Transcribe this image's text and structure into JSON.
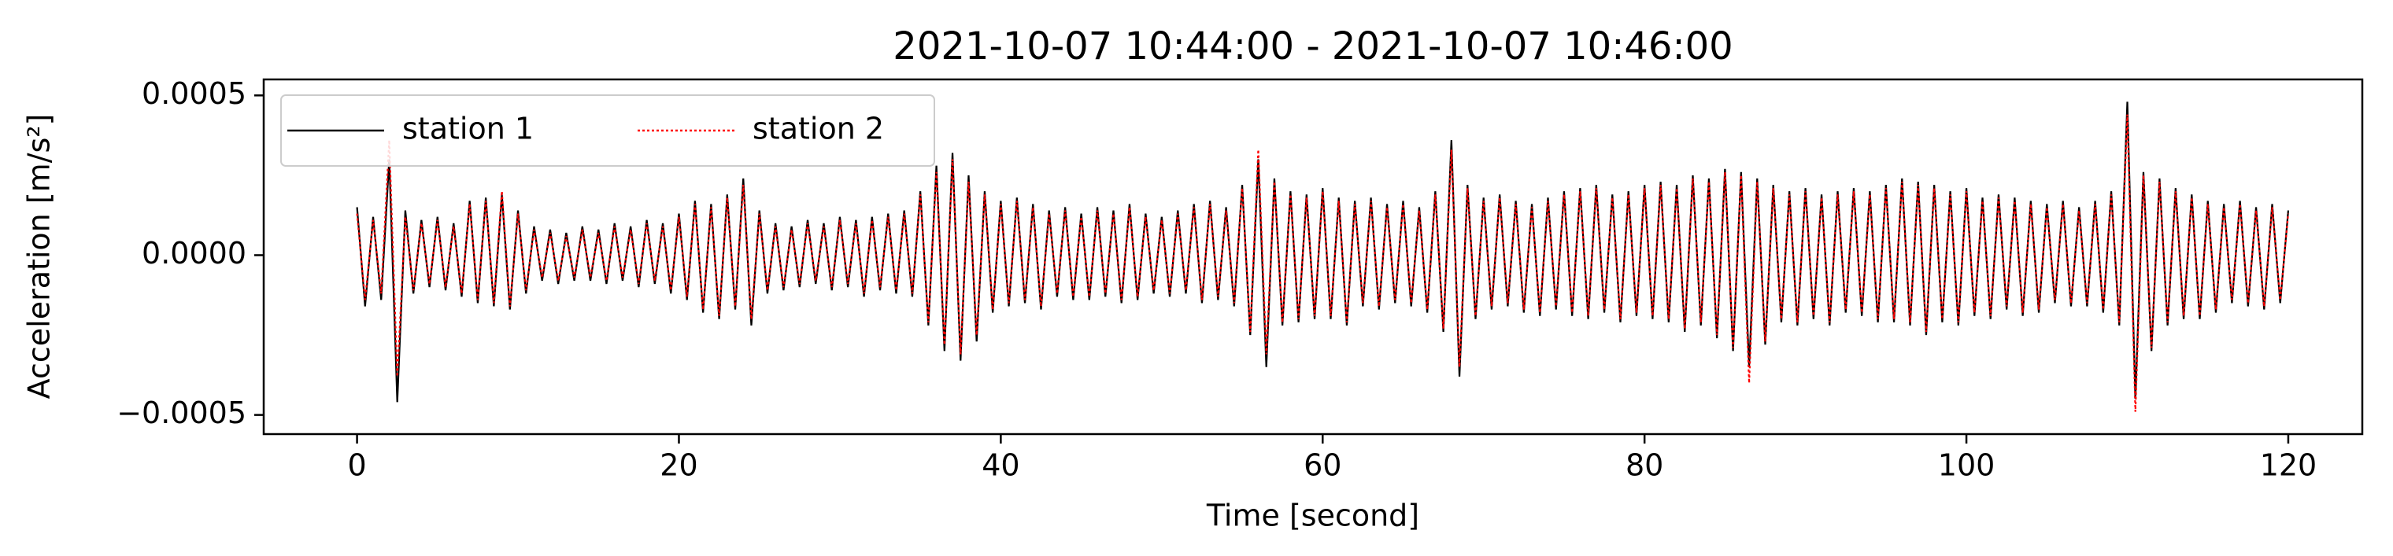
{
  "chart_data": {
    "type": "line",
    "title": "2021-10-07 10:44:00 - 2021-10-07 10:46:00",
    "xlabel": "Time [second]",
    "ylabel": "Acceleration [m/s²]",
    "xlim": [
      -5.8,
      124.6
    ],
    "ylim": [
      -0.00056,
      0.00055
    ],
    "xticks": [
      0,
      20,
      40,
      60,
      80,
      100,
      120
    ],
    "yticks": [
      {
        "value": -0.0005,
        "label": "−0.0005"
      },
      {
        "value": 0,
        "label": "0.0000"
      },
      0.0005
    ],
    "legend": "upper left",
    "x": [
      0,
      0.5,
      1,
      1.5,
      2,
      2.5,
      3,
      3.5,
      4,
      4.5,
      5,
      5.5,
      6,
      6.5,
      7,
      7.5,
      8,
      8.5,
      9,
      9.5,
      10,
      10.5,
      11,
      11.5,
      12,
      12.5,
      13,
      13.5,
      14,
      14.5,
      15,
      15.5,
      16,
      16.5,
      17,
      17.5,
      18,
      18.5,
      19,
      19.5,
      20,
      20.5,
      21,
      21.5,
      22,
      22.5,
      23,
      23.5,
      24,
      24.5,
      25,
      25.5,
      26,
      26.5,
      27,
      27.5,
      28,
      28.5,
      29,
      29.5,
      30,
      30.5,
      31,
      31.5,
      32,
      32.5,
      33,
      33.5,
      34,
      34.5,
      35,
      35.5,
      36,
      36.5,
      37,
      37.5,
      38,
      38.5,
      39,
      39.5,
      40,
      40.5,
      41,
      41.5,
      42,
      42.5,
      43,
      43.5,
      44,
      44.5,
      45,
      45.5,
      46,
      46.5,
      47,
      47.5,
      48,
      48.5,
      49,
      49.5,
      50,
      50.5,
      51,
      51.5,
      52,
      52.5,
      53,
      53.5,
      54,
      54.5,
      55,
      55.5,
      56,
      56.5,
      57,
      57.5,
      58,
      58.5,
      59,
      59.5,
      60,
      60.5,
      61,
      61.5,
      62,
      62.5,
      63,
      63.5,
      64,
      64.5,
      65,
      65.5,
      66,
      66.5,
      67,
      67.5,
      68,
      68.5,
      69,
      69.5,
      70,
      70.5,
      71,
      71.5,
      72,
      72.5,
      73,
      73.5,
      74,
      74.5,
      75,
      75.5,
      76,
      76.5,
      77,
      77.5,
      78,
      78.5,
      79,
      79.5,
      80,
      80.5,
      81,
      81.5,
      82,
      82.5,
      83,
      83.5,
      84,
      84.5,
      85,
      85.5,
      86,
      86.5,
      87,
      87.5,
      88,
      88.5,
      89,
      89.5,
      90,
      90.5,
      91,
      91.5,
      92,
      92.5,
      93,
      93.5,
      94,
      94.5,
      95,
      95.5,
      96,
      96.5,
      97,
      97.5,
      98,
      98.5,
      99,
      99.5,
      100,
      100.5,
      101,
      101.5,
      102,
      102.5,
      103,
      103.5,
      104,
      104.5,
      105,
      105.5,
      106,
      106.5,
      107,
      107.5,
      108,
      108.5,
      109,
      109.5,
      110,
      110.5,
      111,
      111.5,
      112,
      112.5,
      113,
      113.5,
      114,
      114.5,
      115,
      115.5,
      116,
      116.5,
      117,
      117.5,
      118,
      118.5,
      119,
      119.5,
      120
    ],
    "series": [
      {
        "name": "station 1",
        "color": "#000000",
        "style": "solid",
        "values": [
          0.00015,
          -0.00016,
          0.00012,
          -0.00014,
          0.0003,
          -0.00046,
          0.00014,
          -0.00012,
          0.00011,
          -0.0001,
          0.00012,
          -0.00011,
          0.0001,
          -0.00013,
          0.00017,
          -0.00015,
          0.00018,
          -0.00016,
          0.00019,
          -0.00017,
          0.00014,
          -0.00012,
          9e-05,
          -8e-05,
          8e-05,
          -9e-05,
          7e-05,
          -8e-05,
          9e-05,
          -8e-05,
          8e-05,
          -9e-05,
          0.0001,
          -8e-05,
          9e-05,
          -0.0001,
          0.00011,
          -9e-05,
          0.0001,
          -0.00012,
          0.00013,
          -0.00014,
          0.00017,
          -0.00018,
          0.00016,
          -0.0002,
          0.00019,
          -0.00017,
          0.00024,
          -0.00022,
          0.00014,
          -0.00012,
          0.0001,
          -0.00011,
          9e-05,
          -0.0001,
          0.00011,
          -9e-05,
          0.0001,
          -0.00011,
          0.00012,
          -0.0001,
          0.00011,
          -0.00013,
          0.00012,
          -0.00011,
          0.00013,
          -0.00012,
          0.00014,
          -0.00013,
          0.0002,
          -0.00022,
          0.00028,
          -0.0003,
          0.00032,
          -0.00033,
          0.00025,
          -0.00027,
          0.0002,
          -0.00018,
          0.00017,
          -0.00016,
          0.00018,
          -0.00015,
          0.00016,
          -0.00017,
          0.00014,
          -0.00013,
          0.00015,
          -0.00014,
          0.00013,
          -0.00014,
          0.00015,
          -0.00013,
          0.00014,
          -0.00015,
          0.00016,
          -0.00014,
          0.00013,
          -0.00012,
          0.00012,
          -0.00013,
          0.00014,
          -0.00012,
          0.00016,
          -0.00015,
          0.00017,
          -0.00014,
          0.00015,
          -0.00016,
          0.00022,
          -0.00025,
          0.0003,
          -0.00035,
          0.00024,
          -0.00022,
          0.0002,
          -0.00021,
          0.00019,
          -0.0002,
          0.00021,
          -0.0002,
          0.00018,
          -0.00022,
          0.00017,
          -0.00016,
          0.00018,
          -0.00017,
          0.00016,
          -0.00015,
          0.00017,
          -0.00016,
          0.00015,
          -0.00018,
          0.0002,
          -0.00024,
          0.00036,
          -0.00038,
          0.00022,
          -0.0002,
          0.00018,
          -0.00017,
          0.00019,
          -0.00016,
          0.00017,
          -0.00018,
          0.00016,
          -0.00019,
          0.00018,
          -0.00017,
          0.0002,
          -0.00019,
          0.00021,
          -0.0002,
          0.00022,
          -0.00018,
          0.00019,
          -0.00021,
          0.0002,
          -0.00019,
          0.00022,
          -0.0002,
          0.00023,
          -0.00021,
          0.00022,
          -0.00024,
          0.00025,
          -0.00022,
          0.00024,
          -0.00026,
          0.00027,
          -0.0003,
          0.00026,
          -0.00035,
          0.00024,
          -0.00028,
          0.00022,
          -0.00021,
          0.0002,
          -0.00022,
          0.00021,
          -0.0002,
          0.00019,
          -0.00022,
          0.0002,
          -0.00018,
          0.00021,
          -0.00019,
          0.0002,
          -0.00021,
          0.00022,
          -0.00021,
          0.00024,
          -0.00022,
          0.00023,
          -0.00025,
          0.00022,
          -0.00021,
          0.0002,
          -0.00022,
          0.00021,
          -0.00019,
          0.00018,
          -0.0002,
          0.00019,
          -0.00017,
          0.00018,
          -0.00019,
          0.00017,
          -0.00018,
          0.00016,
          -0.00015,
          0.00017,
          -0.00016,
          0.00015,
          -0.00016,
          0.00017,
          -0.00018,
          0.0002,
          -0.00022,
          0.00048,
          -0.00045,
          0.00026,
          -0.0003,
          0.00024,
          -0.00022,
          0.00021,
          -0.0002,
          0.00019,
          -0.0002,
          0.00017,
          -0.00018,
          0.00016,
          -0.00015,
          0.00017,
          -0.00016,
          0.00015,
          -0.00017,
          0.00016,
          -0.00015,
          0.00014
        ]
      },
      {
        "name": "station 2",
        "color": "#ff0000",
        "style": "dotted",
        "values": [
          0.00013,
          -0.00014,
          0.00011,
          -0.00012,
          0.00036,
          -0.00038,
          0.00012,
          -0.00011,
          0.0001,
          -9e-05,
          0.00011,
          -0.0001,
          9e-05,
          -0.00012,
          0.00016,
          -0.00014,
          0.00017,
          -0.00015,
          0.0002,
          -0.00016,
          0.00013,
          -0.00011,
          8e-05,
          -7e-05,
          7e-05,
          -8e-05,
          6e-05,
          -7e-05,
          8e-05,
          -7e-05,
          7e-05,
          -8e-05,
          9e-05,
          -7e-05,
          8e-05,
          -9e-05,
          0.0001,
          -8e-05,
          9e-05,
          -0.00011,
          0.00012,
          -0.00013,
          0.00016,
          -0.00017,
          0.00015,
          -0.00019,
          0.00018,
          -0.00016,
          0.00022,
          -0.0002,
          0.00013,
          -0.00011,
          9e-05,
          -0.0001,
          8e-05,
          -9e-05,
          0.0001,
          -8e-05,
          9e-05,
          -0.0001,
          0.00011,
          -9e-05,
          0.0001,
          -0.00012,
          0.00011,
          -0.0001,
          0.00012,
          -0.00011,
          0.00013,
          -0.00012,
          0.00019,
          -0.00021,
          0.00026,
          -0.00028,
          0.0003,
          -0.00031,
          0.00023,
          -0.00025,
          0.00019,
          -0.00017,
          0.00016,
          -0.00015,
          0.00017,
          -0.00014,
          0.00015,
          -0.00016,
          0.00013,
          -0.00012,
          0.00014,
          -0.00013,
          0.00012,
          -0.00013,
          0.00014,
          -0.00012,
          0.00013,
          -0.00014,
          0.00015,
          -0.00013,
          0.00012,
          -0.00011,
          0.00011,
          -0.00012,
          0.00013,
          -0.00011,
          0.00015,
          -0.00014,
          0.00016,
          -0.00013,
          0.00014,
          -0.00015,
          0.00021,
          -0.00024,
          0.00033,
          -0.00031,
          0.00023,
          -0.00021,
          0.00019,
          -0.0002,
          0.00018,
          -0.00019,
          0.0002,
          -0.00019,
          0.00017,
          -0.00021,
          0.00016,
          -0.00015,
          0.00017,
          -0.00016,
          0.00015,
          -0.00014,
          0.00016,
          -0.00015,
          0.00014,
          -0.00017,
          0.00019,
          -0.00023,
          0.00033,
          -0.00035,
          0.00021,
          -0.00019,
          0.00017,
          -0.00016,
          0.00018,
          -0.00015,
          0.00016,
          -0.00017,
          0.00015,
          -0.00018,
          0.00017,
          -0.00016,
          0.00019,
          -0.00018,
          0.0002,
          -0.00019,
          0.00021,
          -0.00017,
          0.00018,
          -0.0002,
          0.00019,
          -0.00018,
          0.00021,
          -0.00019,
          0.00022,
          -0.0002,
          0.00021,
          -0.00023,
          0.00024,
          -0.00021,
          0.00023,
          -0.00025,
          0.00026,
          -0.00029,
          0.00025,
          -0.0004,
          0.00023,
          -0.00027,
          0.00021,
          -0.0002,
          0.00019,
          -0.00021,
          0.0002,
          -0.00019,
          0.00018,
          -0.00021,
          0.00019,
          -0.00017,
          0.0002,
          -0.00018,
          0.00019,
          -0.0002,
          0.00021,
          -0.0002,
          0.00023,
          -0.00021,
          0.00022,
          -0.00024,
          0.00021,
          -0.0002,
          0.00019,
          -0.00021,
          0.0002,
          -0.00018,
          0.00017,
          -0.00019,
          0.00018,
          -0.00016,
          0.00017,
          -0.00018,
          0.00016,
          -0.00017,
          0.00015,
          -0.00014,
          0.00016,
          -0.00015,
          0.00014,
          -0.00015,
          0.00016,
          -0.00017,
          0.00019,
          -0.00021,
          0.00044,
          -0.00049,
          0.00025,
          -0.00029,
          0.00023,
          -0.00021,
          0.0002,
          -0.00019,
          0.00018,
          -0.00019,
          0.00016,
          -0.00017,
          0.00015,
          -0.00014,
          0.00016,
          -0.00015,
          0.00014,
          -0.00016,
          0.00015,
          -0.00014,
          0.00013
        ]
      }
    ]
  }
}
